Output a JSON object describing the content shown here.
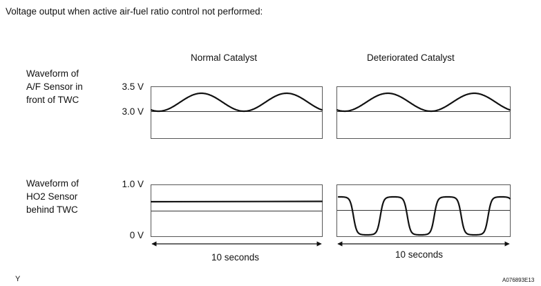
{
  "intro_text": "Voltage output when active air-fuel ratio control not performed:",
  "column_headers": [
    "Normal Catalyst",
    "Deteriorated Catalyst"
  ],
  "rows": [
    {
      "label": "Waveform of\nA/F Sensor in\nfront of TWC",
      "y_labels": {
        "top": "3.5 V",
        "reference": "3.0 V"
      }
    },
    {
      "label": "Waveform of\nHO2 Sensor\nbehind TWC",
      "y_labels": {
        "top": "1.0 V",
        "bottom": "0 V"
      }
    }
  ],
  "duration_label": "10 seconds",
  "figure_id": "A076893E13",
  "corner_letter": "Y",
  "waveforms": {
    "af_normal": {
      "shape": "sine",
      "cycles": 2,
      "min_v": 3.0,
      "max_v": 3.5
    },
    "af_deteriorated": {
      "shape": "sine",
      "cycles": 2,
      "min_v": 3.0,
      "max_v": 3.5
    },
    "ho2_normal": {
      "shape": "flat",
      "level_v": 0.72
    },
    "ho2_deteriorated": {
      "shape": "square-rounded",
      "cycles": 3,
      "min_v": 0.0,
      "max_v": 0.9
    }
  },
  "colors": {
    "ink": "#111111",
    "frame": "#555555",
    "reference_line": "#333333"
  }
}
